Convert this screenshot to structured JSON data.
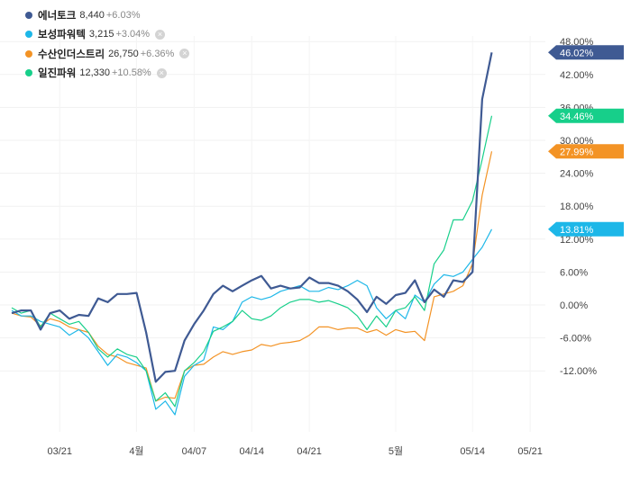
{
  "legend": [
    {
      "name": "에너토크",
      "price": "8,440",
      "change": "+6.03%",
      "color": "#3f5a93",
      "closable": false
    },
    {
      "name": "보성파워텍",
      "price": "3,215",
      "change": "+3.04%",
      "color": "#1db7e8",
      "closable": true
    },
    {
      "name": "수산인더스트리",
      "price": "26,750",
      "change": "+6.36%",
      "color": "#f39325",
      "closable": true
    },
    {
      "name": "일진파워",
      "price": "12,330",
      "change": "+10.58%",
      "color": "#17cf8a",
      "closable": true
    }
  ],
  "chart_data": {
    "type": "line",
    "x_tick_labels": [
      "03/21",
      "4월",
      "04/07",
      "04/14",
      "04/21",
      "5월",
      "05/14",
      "05/21"
    ],
    "x_tick_index": [
      5,
      13,
      19,
      25,
      31,
      40,
      48,
      54
    ],
    "y_ticks": [
      48,
      42,
      36,
      30,
      24,
      18,
      12,
      6,
      0,
      -6,
      -12
    ],
    "y_tick_labels": [
      "48.00%",
      "42.00%",
      "36.00%",
      "30.00%",
      "24.00%",
      "18.00%",
      "12.00%",
      "6.00%",
      "0.00%",
      "-6.00%",
      "-12.00%"
    ],
    "ylim": [
      -22,
      50
    ],
    "y_unit": "%",
    "grid": true,
    "legend_position": "top-left",
    "series": [
      {
        "name": "에너토크",
        "color": "#3f5a93",
        "last_label": "46.02%",
        "values": [
          -1.5,
          -1,
          -1,
          -4.5,
          -1.5,
          -1,
          -2.5,
          -1.8,
          -2,
          1.2,
          0.5,
          2,
          2,
          2.2,
          -5,
          -14,
          -12.2,
          -12,
          -6.5,
          -3.5,
          -1,
          2,
          3.5,
          2.5,
          3.5,
          4.5,
          5.3,
          3,
          3.5,
          3,
          3.2,
          5,
          4,
          4,
          3.5,
          2.5,
          1,
          -1.3,
          1.5,
          0.2,
          1.8,
          2.2,
          4.5,
          0.5,
          2.8,
          1.5,
          4.5,
          4.2,
          6,
          37.5,
          46.02
        ]
      },
      {
        "name": "보성파워텍",
        "color": "#1db7e8",
        "last_label": "13.81%",
        "values": [
          -1,
          -2,
          -2,
          -3,
          -3.5,
          -4,
          -5.5,
          -4.5,
          -6,
          -8.5,
          -11,
          -9,
          -9.5,
          -10.5,
          -12,
          -19,
          -17.5,
          -20,
          -13,
          -11,
          -10,
          -4,
          -4.5,
          -3,
          0.5,
          1.5,
          1,
          1.5,
          2.5,
          3,
          3.5,
          2.5,
          2.5,
          3.2,
          2.8,
          3.5,
          4.5,
          3.5,
          -0.5,
          -2.5,
          -1,
          -2.5,
          1.8,
          0.5,
          3.8,
          5.5,
          5.2,
          6,
          8.3,
          10.5,
          13.81
        ]
      },
      {
        "name": "수산인더스트리",
        "color": "#f39325",
        "last_label": "27.99%",
        "values": [
          -1.5,
          -2,
          -2.2,
          -3.8,
          -2.5,
          -3,
          -4,
          -4.5,
          -5,
          -7.5,
          -9,
          -9.5,
          -10.5,
          -11,
          -11.5,
          -17.5,
          -16.8,
          -17,
          -12,
          -11,
          -10.8,
          -9.5,
          -8.5,
          -9,
          -8.5,
          -8.2,
          -7.2,
          -7.5,
          -7,
          -6.8,
          -6.5,
          -5.5,
          -4,
          -4,
          -4.5,
          -4.2,
          -4.2,
          -5,
          -4.5,
          -5.5,
          -4.5,
          -5,
          -4.8,
          -6.5,
          1.5,
          2,
          2.5,
          3.5,
          7.5,
          20,
          27.99
        ]
      },
      {
        "name": "일진파워",
        "color": "#17cf8a",
        "last_label": "34.46%",
        "values": [
          -0.5,
          -1.5,
          -1,
          -4,
          -1.5,
          -2.5,
          -3.5,
          -3,
          -5,
          -8,
          -9.5,
          -8,
          -9,
          -9.5,
          -12,
          -17.5,
          -16,
          -18.5,
          -12,
          -10.5,
          -8.5,
          -4.8,
          -4,
          -3,
          -1,
          -2.5,
          -2.8,
          -2,
          -0.5,
          0.5,
          1,
          1,
          0.5,
          0.8,
          0.2,
          -0.5,
          -2,
          -4.5,
          -2,
          -4,
          -1,
          -0.5,
          1.5,
          -1,
          7.5,
          10,
          15.5,
          15.5,
          19,
          26.5,
          34.46
        ]
      }
    ],
    "last_labels_shown": [
      {
        "series": 0,
        "text": "46.02%",
        "bg": "#3f5a93"
      },
      {
        "series": 3,
        "text": "34.46%",
        "bg": "#17cf8a"
      },
      {
        "series": 2,
        "text": "27.99%",
        "bg": "#f39325"
      },
      {
        "series": 1,
        "text": "13.81%",
        "bg": "#1db7e8"
      }
    ]
  }
}
